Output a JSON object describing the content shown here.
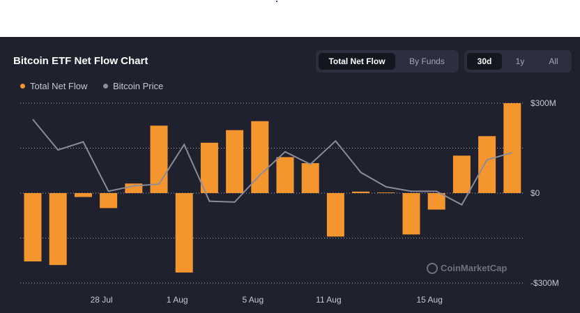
{
  "header": {
    "title": "Bitcoin ETF Net Flow Chart",
    "view_tabs": [
      {
        "label": "Total Net Flow",
        "active": true
      },
      {
        "label": "By Funds",
        "active": false
      }
    ],
    "range_tabs": [
      {
        "label": "30d",
        "active": true
      },
      {
        "label": "1y",
        "active": false
      },
      {
        "label": "All",
        "active": false
      }
    ]
  },
  "watermark": "CoinMarketCap",
  "colors": {
    "background": "#1f212e",
    "bar": "#f5952d",
    "price_line": "#8a8d99",
    "grid": "#cfd1d8",
    "text": "#c5c8d3"
  },
  "chart_data": {
    "type": "bar",
    "title": "Bitcoin ETF Net Flow Chart",
    "legend": {
      "position": "top-left",
      "entries": [
        "Total Net Flow",
        "Bitcoin Price"
      ]
    },
    "y_axis": {
      "ticks": [
        "$300M",
        "$0",
        "-$300M"
      ],
      "tick_values": [
        300,
        0,
        -300
      ],
      "ylim": [
        -300,
        300
      ],
      "units": "$M",
      "side": "right"
    },
    "x_axis": {
      "tick_labels": [
        "28 Jul",
        "1 Aug",
        "5 Aug",
        "11 Aug",
        "15 Aug"
      ],
      "tick_bar_index": [
        3,
        6,
        9,
        12,
        16
      ]
    },
    "grid": true,
    "series": [
      {
        "name": "Total Net Flow",
        "type": "bar",
        "values": [
          -228,
          -240,
          -13,
          -50,
          32,
          225,
          -265,
          168,
          210,
          240,
          120,
          100,
          -145,
          5,
          2,
          -138,
          -55,
          125,
          190,
          300
        ]
      },
      {
        "name": "Bitcoin Price",
        "type": "line",
        "relative_levels": [
          0.82,
          0.48,
          0.57,
          0.02,
          0.08,
          0.1,
          0.54,
          -0.09,
          -0.1,
          0.2,
          0.46,
          0.32,
          0.58,
          0.23,
          0.07,
          0.02,
          0.02,
          -0.13,
          0.37,
          0.45
        ]
      }
    ]
  }
}
